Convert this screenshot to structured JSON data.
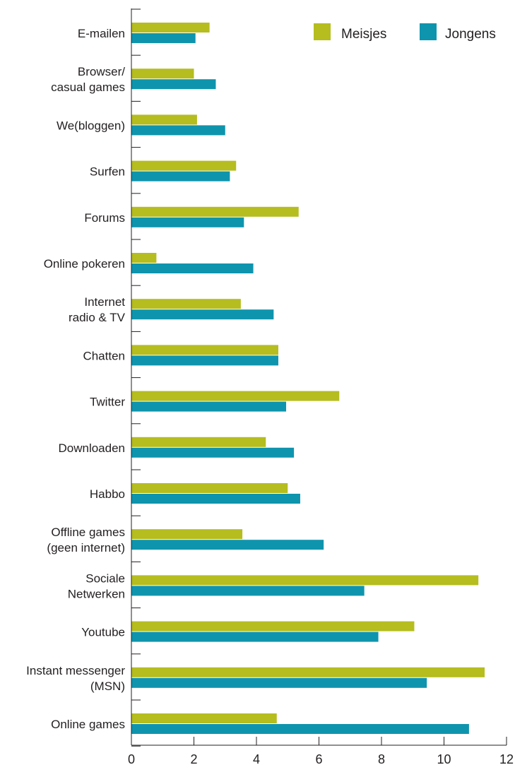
{
  "chart_data": {
    "type": "bar",
    "orientation": "horizontal",
    "categories": [
      [
        "E-mailen"
      ],
      [
        "Browser/",
        "casual games"
      ],
      [
        "We(bloggen)"
      ],
      [
        "Surfen"
      ],
      [
        "Forums"
      ],
      [
        "Online pokeren"
      ],
      [
        "Internet",
        "radio & TV"
      ],
      [
        "Chatten"
      ],
      [
        "Twitter"
      ],
      [
        "Downloaden"
      ],
      [
        "Habbo"
      ],
      [
        "Offline games",
        "(geen internet)"
      ],
      [
        "Sociale",
        "Netwerken"
      ],
      [
        "Youtube"
      ],
      [
        "Instant messenger",
        "(MSN)"
      ],
      [
        "Online games"
      ]
    ],
    "series": [
      {
        "name": "Meisjes",
        "color": "#b5bd1f",
        "values": [
          2.5,
          2.0,
          2.1,
          3.35,
          5.35,
          0.8,
          3.5,
          4.7,
          6.65,
          4.3,
          5.0,
          3.55,
          11.1,
          9.05,
          11.3,
          4.65
        ]
      },
      {
        "name": "Jongens",
        "color": "#0f94ad",
        "values": [
          2.05,
          2.7,
          3.0,
          3.15,
          3.6,
          3.9,
          4.55,
          4.7,
          4.95,
          5.2,
          5.4,
          6.15,
          7.45,
          7.9,
          9.45,
          10.8
        ]
      }
    ],
    "xlim": [
      0,
      12
    ],
    "xticks": [
      "0",
      "2",
      "4",
      "6",
      "8",
      "10",
      "12"
    ],
    "xlabel": "",
    "ylabel": "",
    "title": "",
    "grid": false,
    "legend_position": "top-right"
  }
}
